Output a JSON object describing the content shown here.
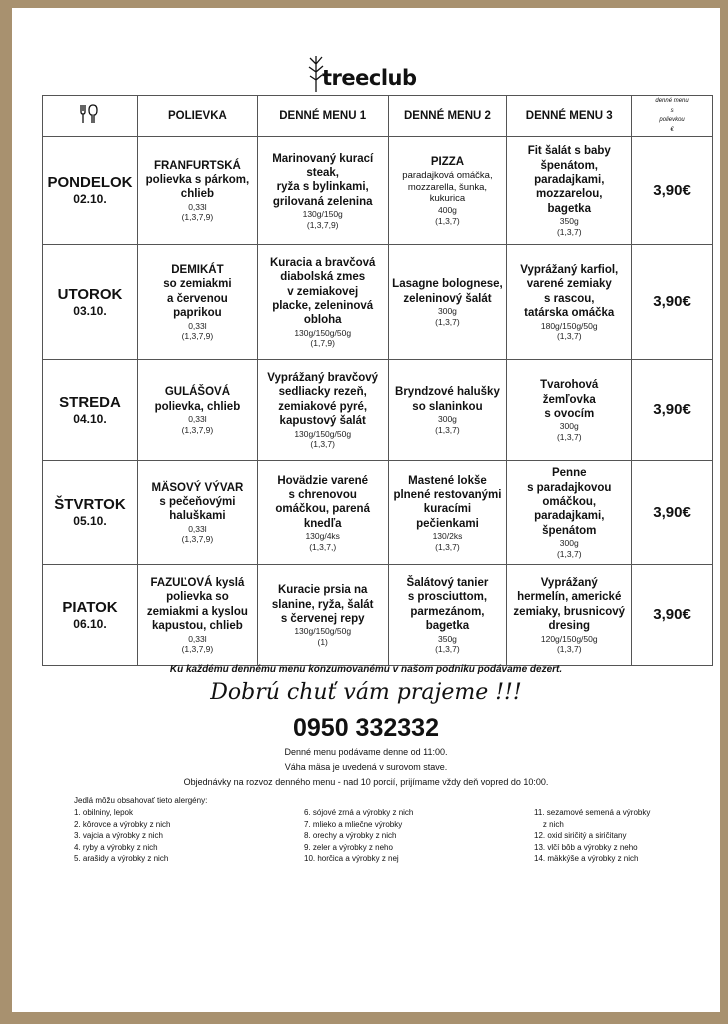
{
  "brand": {
    "name": "treeclub",
    "border_color": "#a8916f"
  },
  "header": {
    "icon": "cutlery-icon",
    "columns": [
      "POLIEVKA",
      "DENNÉ MENU 1",
      "DENNÉ MENU 2",
      "DENNÉ MENU 3"
    ],
    "price_header": [
      "denné menu",
      "s",
      "polievkou",
      "€"
    ]
  },
  "days": [
    {
      "day": "PONDELOK",
      "date": "02.10.",
      "soup": {
        "lines": [
          "FRANFURTSKÁ",
          "polievka s párkom,",
          "chlieb"
        ],
        "qty": "0,33l",
        "allergens": "(1,3,7,9)"
      },
      "menu1": {
        "lines": [
          "Marinovaný kurací",
          "steak,",
          "ryža s bylinkami,",
          "grilovaná zelenina"
        ],
        "qty": "130g/150g",
        "allergens": "(1,3,7,9)"
      },
      "menu2": {
        "lines": [
          "PIZZA"
        ],
        "sub": [
          "paradajková omáčka,",
          "mozzarella, šunka,",
          "kukurica"
        ],
        "qty": "400g",
        "allergens": "(1,3,7)"
      },
      "menu3": {
        "lines": [
          "Fit šalát s baby",
          "špenátom,",
          "paradajkami,",
          "mozzarelou,",
          "bagetka"
        ],
        "qty": "350g",
        "allergens": "(1,3,7)"
      },
      "price": "3,90€"
    },
    {
      "day": "UTOROK",
      "date": "03.10.",
      "soup": {
        "lines": [
          "DEMIKÁT",
          "so zemiakmi",
          "a červenou",
          "paprikou"
        ],
        "qty": "0,33l",
        "allergens": "(1,3,7,9)"
      },
      "menu1": {
        "lines": [
          "Kuracia a bravčová",
          "diabolská zmes",
          "v zemiakovej",
          "placke, zeleninová",
          "obloha"
        ],
        "qty": "130g/150g/50g",
        "allergens": "(1,7,9)"
      },
      "menu2": {
        "lines": [
          "Lasagne bolognese,",
          "zeleninový šalát"
        ],
        "qty": "300g",
        "allergens": "(1,3,7)"
      },
      "menu3": {
        "lines": [
          "Vyprážaný karfiol,",
          "varené zemiaky",
          "s rascou,",
          "tatárska omáčka"
        ],
        "qty": "180g/150g/50g",
        "allergens": "(1,3,7)"
      },
      "price": "3,90€"
    },
    {
      "day": "STREDA",
      "date": "04.10.",
      "soup": {
        "lines": [
          "GULÁŠOVÁ",
          "polievka, chlieb"
        ],
        "qty": "0,33l",
        "allergens": "(1,3,7,9)"
      },
      "menu1": {
        "lines": [
          "Vyprážaný bravčový",
          "sedliacky rezeň,",
          "zemiakové pyré,",
          "kapustový šalát"
        ],
        "qty": "130g/150g/50g",
        "allergens": "(1,3,7)"
      },
      "menu2": {
        "lines": [
          "Bryndzové halušky",
          "so slaninkou"
        ],
        "qty": "300g",
        "allergens": "(1,3,7)"
      },
      "menu3": {
        "lines": [
          "Tvarohová",
          "žemľovka",
          "s ovocím"
        ],
        "qty": "300g",
        "allergens": "(1,3,7)"
      },
      "price": "3,90€"
    },
    {
      "day": "ŠTVRTOK",
      "date": "05.10.",
      "soup": {
        "lines": [
          "MÄSOVÝ VÝVAR",
          "s pečeňovými",
          "haluškami"
        ],
        "qty": "0,33l",
        "allergens": "(1,3,7,9)"
      },
      "menu1": {
        "lines": [
          "Hovädzie varené",
          "s chrenovou",
          "omáčkou, parená",
          "knedľa"
        ],
        "qty": "130g/4ks",
        "allergens": "(1,3,7,)"
      },
      "menu2": {
        "lines": [
          "Mastené lokše",
          "plnené restovanými",
          "kuracími",
          "pečienkami"
        ],
        "qty": "130/2ks",
        "allergens": "(1,3,7)"
      },
      "menu3": {
        "lines": [
          "Penne",
          "s paradajkovou",
          "omáčkou,",
          "paradajkami,",
          "špenátom"
        ],
        "qty": "300g",
        "allergens": "(1,3,7)"
      },
      "price": "3,90€"
    },
    {
      "day": "PIATOK",
      "date": "06.10.",
      "soup": {
        "lines": [
          "FAZUĽOVÁ kyslá",
          "polievka so",
          "zemiakmi a kyslou",
          "kapustou, chlieb"
        ],
        "qty": "0,33l",
        "allergens": "(1,3,7,9)"
      },
      "menu1": {
        "lines": [
          "Kuracie prsia na",
          "slanine, ryža, šalát",
          "s červenej repy"
        ],
        "qty": "130g/150g/50g",
        "allergens": "(1)"
      },
      "menu2": {
        "lines": [
          "Šalátový tanier",
          "s prosciuttom,",
          "parmezánom,",
          "bagetka"
        ],
        "qty": "350g",
        "allergens": "(1,3,7)"
      },
      "menu3": {
        "lines": [
          "Vyprážaný",
          "hermelín, americké",
          "zemiaky, brusnicový",
          "dresing"
        ],
        "qty": "120g/150g/50g",
        "allergens": "(1,3,7)"
      },
      "price": "3,90€"
    }
  ],
  "footer": {
    "dessert_note": "Ku každému dennému menu konzumovanému v našom podniku podávame dezert.",
    "greeting": "Dobrú chuť vám prajeme !!!",
    "phone": "0950 332332",
    "info": [
      "Denné menu podávame denne od 11:00.",
      "Váha mäsa je uvedená v surovom stave.",
      "Objednávky na rozvoz denného menu - nad 10 porcií, prijímame vždy deň vopred do 10:00."
    ],
    "allergens_heading": "Jedlá môžu obsahovať tieto alergény:",
    "allergens": [
      [
        "1. obilniny, lepok",
        "2. kôrovce a výrobky z nich",
        "3. vajcia a výrobky z nich",
        "4. ryby a výrobky z nich",
        "5. arašidy a výrobky z nich"
      ],
      [
        "6. sójové zrná a výrobky z nich",
        "7. mlieko a mliečne výrobky",
        "8. orechy a výrobky z nich",
        "9. zeler a výrobky z neho",
        "10. horčica a výrobky z nej"
      ],
      [
        "11. sezamové semená a výrobky\n    z nich",
        "12. oxid siričitý a siričitany",
        "13. vlčí bôb a výrobky z neho",
        "14. mäkkýše a výrobky z nich"
      ]
    ]
  }
}
